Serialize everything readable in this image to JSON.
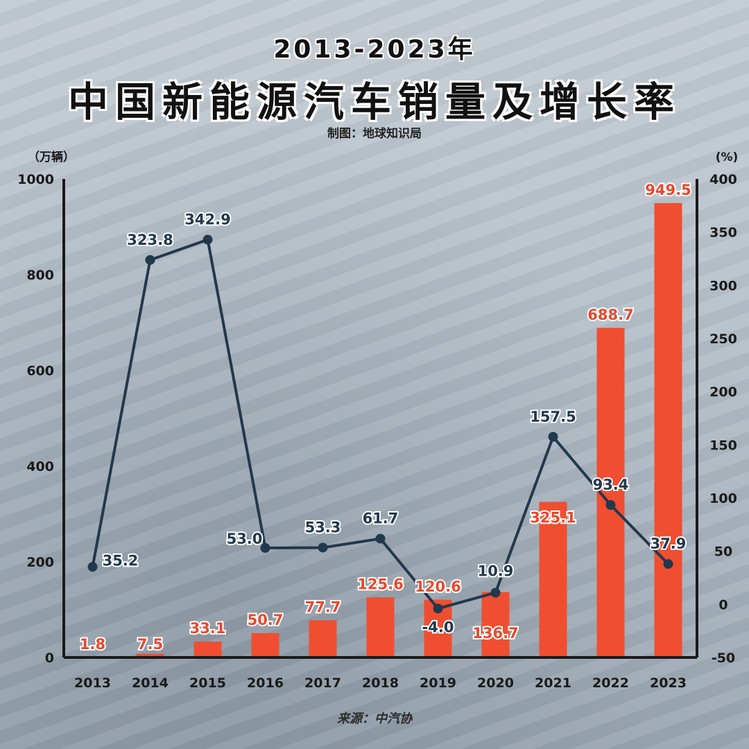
{
  "header": {
    "title_top": "2013-2023年",
    "title_main": "中国新能源汽车销量及增长率",
    "subtitle": "制图：地球知识局"
  },
  "footer": {
    "source": "来源：中汽协"
  },
  "colors": {
    "bar": "#f04e30",
    "line": "#22384d",
    "axis": "#1a1a1a"
  },
  "chart_data": {
    "type": "bar+line",
    "categories": [
      "2013",
      "2014",
      "2015",
      "2016",
      "2017",
      "2018",
      "2019",
      "2020",
      "2021",
      "2022",
      "2023"
    ],
    "series": [
      {
        "name": "",
        "type": "bar",
        "axis": "left",
        "unit": "万辆",
        "values": [
          1.8,
          7.5,
          33.1,
          50.7,
          77.7,
          125.6,
          120.6,
          136.7,
          325.1,
          688.7,
          949.5
        ]
      },
      {
        "name": "",
        "type": "line",
        "axis": "right",
        "unit": "%",
        "values": [
          35.2,
          323.8,
          342.9,
          53.0,
          53.3,
          61.7,
          -4.0,
          10.9,
          157.5,
          93.4,
          37.9
        ]
      }
    ],
    "y_left": {
      "unit_label": "（万辆）",
      "ylim": [
        0,
        1000
      ],
      "ticks": [
        "0",
        "200",
        "400",
        "600",
        "800",
        "1000"
      ]
    },
    "y_right": {
      "unit_label": "(%)",
      "ylim": [
        -50,
        400
      ],
      "ticks": [
        "-50",
        "0",
        "50",
        "100",
        "150",
        "200",
        "250",
        "300",
        "350",
        "400"
      ]
    },
    "grid": false,
    "legend": "none"
  }
}
